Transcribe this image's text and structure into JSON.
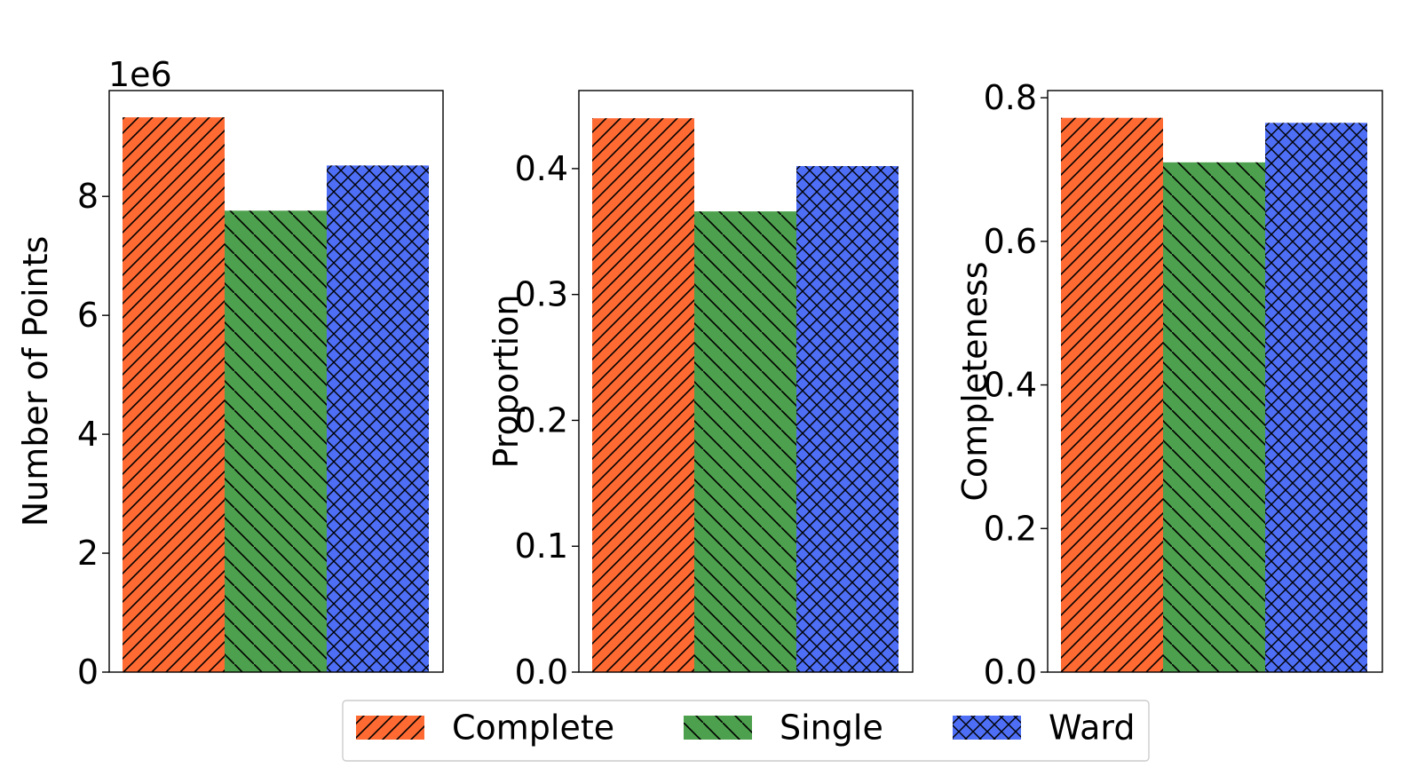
{
  "legend": {
    "placement": "bottom-center",
    "entries": [
      {
        "label": "Complete",
        "color": "#ff6a33",
        "hatch": "forward-diagonal"
      },
      {
        "label": "Single",
        "color": "#4da04d",
        "hatch": "backward-diagonal"
      },
      {
        "label": "Ward",
        "color": "#4d6ef5",
        "hatch": "crosshatch"
      }
    ]
  },
  "chart_data": [
    {
      "type": "bar",
      "ylabel": "Number of Points",
      "offset_text": "1e6",
      "ylim": [
        0,
        9.78
      ],
      "yticks": [
        0,
        2,
        4,
        6,
        8
      ],
      "ytick_labels": [
        "0",
        "2",
        "4",
        "6",
        "8"
      ],
      "series": [
        {
          "name": "Complete",
          "value": 9.33
        },
        {
          "name": "Single",
          "value": 7.76
        },
        {
          "name": "Ward",
          "value": 8.52
        }
      ]
    },
    {
      "type": "bar",
      "ylabel": "Proportion",
      "ylim": [
        0,
        0.462
      ],
      "yticks": [
        0.0,
        0.1,
        0.2,
        0.3,
        0.4
      ],
      "ytick_labels": [
        "0.0",
        "0.1",
        "0.2",
        "0.3",
        "0.4"
      ],
      "series": [
        {
          "name": "Complete",
          "value": 0.44
        },
        {
          "name": "Single",
          "value": 0.366
        },
        {
          "name": "Ward",
          "value": 0.402
        }
      ]
    },
    {
      "type": "bar",
      "ylabel": "Completeness",
      "ylim": [
        0,
        0.81
      ],
      "yticks": [
        0.0,
        0.2,
        0.4,
        0.6,
        0.8
      ],
      "ytick_labels": [
        "0.0",
        "0.2",
        "0.4",
        "0.6",
        "0.8"
      ],
      "series": [
        {
          "name": "Complete",
          "value": 0.772
        },
        {
          "name": "Single",
          "value": 0.71
        },
        {
          "name": "Ward",
          "value": 0.765
        }
      ]
    }
  ]
}
